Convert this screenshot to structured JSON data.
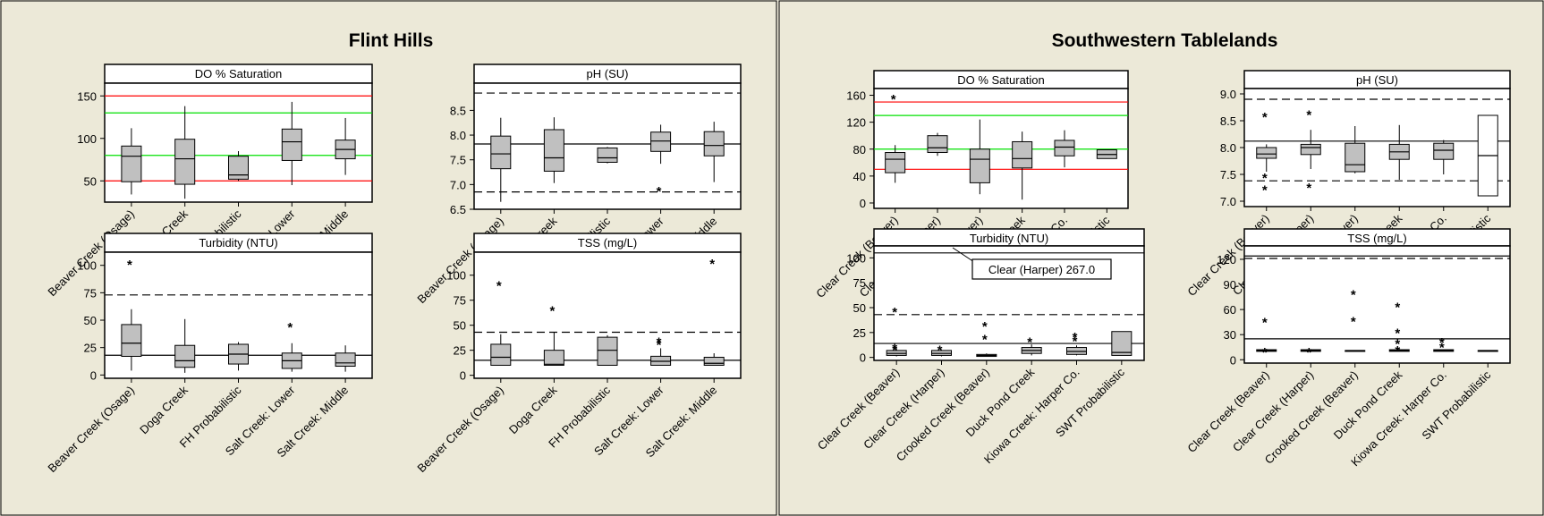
{
  "colors": {
    "background": "#ECE9D8",
    "box_fill": "#C0C0C0",
    "red_line": "#FF0000",
    "green_line": "#00E000",
    "frame": "#000000"
  },
  "groups": [
    {
      "title": "Flint Hills",
      "categories": [
        "Beaver Creek (Osage)",
        "Doga Creek",
        "FH Probabilistic",
        "Salt Creek:  Lower",
        "Salt Creek: Middle"
      ]
    },
    {
      "title": "Southwestern Tablelands",
      "categories": [
        "Clear Creek (Beaver)",
        "Clear Creek (Harper)",
        "Crooked Creek (Beaver)",
        "Duck Pond Creek",
        "Kiowa Creek:  Harper Co.",
        "SWT Probabilistic"
      ]
    }
  ],
  "chart_data": [
    {
      "type": "box",
      "group": "Flint Hills",
      "title": "DO % Saturation",
      "categories": [
        "Beaver Creek (Osage)",
        "Doga Creek",
        "FH Probabilistic",
        "Salt Creek:  Lower",
        "Salt Creek: Middle"
      ],
      "ylim": [
        25,
        165
      ],
      "yticks": [
        50,
        100,
        150
      ],
      "boxes": [
        {
          "wl": 34,
          "q1": 49,
          "median": 79,
          "q3": 91,
          "wh": 112,
          "outliers": []
        },
        {
          "wl": 29,
          "q1": 46,
          "median": 76,
          "q3": 99,
          "wh": 138,
          "outliers": []
        },
        {
          "wl": 50,
          "q1": 52,
          "median": 57,
          "q3": 79,
          "wh": 85,
          "outliers": []
        },
        {
          "wl": 45,
          "q1": 74,
          "median": 96,
          "q3": 111,
          "wh": 143,
          "outliers": []
        },
        {
          "wl": 57,
          "q1": 76,
          "median": 87,
          "q3": 98,
          "wh": 124,
          "outliers": []
        }
      ],
      "reference_lines": [
        {
          "value": 150,
          "style": "red"
        },
        {
          "value": 130,
          "style": "green"
        },
        {
          "value": 80,
          "style": "green"
        },
        {
          "value": 50,
          "style": "red"
        }
      ]
    },
    {
      "type": "box",
      "group": "Flint Hills",
      "title": "pH (SU)",
      "categories": [
        "Beaver Creek (Osage)",
        "Doga Creek",
        "FH Probabilistic",
        "Salt Creek:  Lower",
        "Salt Creek: Middle"
      ],
      "ylim": [
        6.5,
        9.05
      ],
      "yticks": [
        6.5,
        7.0,
        7.5,
        8.0,
        8.5
      ],
      "boxes": [
        {
          "wl": 6.65,
          "q1": 7.32,
          "median": 7.62,
          "q3": 7.98,
          "wh": 8.35,
          "outliers": []
        },
        {
          "wl": 7.03,
          "q1": 7.27,
          "median": 7.54,
          "q3": 8.11,
          "wh": 8.36,
          "outliers": []
        },
        {
          "wl": 7.43,
          "q1": 7.45,
          "median": 7.54,
          "q3": 7.74,
          "wh": 7.76,
          "outliers": []
        },
        {
          "wl": 7.42,
          "q1": 7.67,
          "median": 7.88,
          "q3": 8.06,
          "wh": 8.21,
          "outliers": [
            6.92
          ]
        },
        {
          "wl": 7.05,
          "q1": 7.58,
          "median": 7.79,
          "q3": 8.07,
          "wh": 8.27,
          "outliers": []
        }
      ],
      "reference_lines": [
        {
          "value": 8.85,
          "style": "dashed"
        },
        {
          "value": 7.82,
          "style": "solid"
        },
        {
          "value": 6.85,
          "style": "dashed"
        }
      ]
    },
    {
      "type": "box",
      "group": "Flint Hills",
      "title": "Turbidity (NTU)",
      "categories": [
        "Beaver Creek (Osage)",
        "Doga Creek",
        "FH Probabilistic",
        "Salt Creek:  Lower",
        "Salt Creek: Middle"
      ],
      "ylim": [
        -3,
        112
      ],
      "yticks": [
        0,
        25,
        50,
        75,
        100
      ],
      "boxes": [
        {
          "wl": 4,
          "q1": 17,
          "median": 29,
          "q3": 46,
          "wh": 60,
          "outliers": [
            103
          ]
        },
        {
          "wl": 2,
          "q1": 7,
          "median": 13,
          "q3": 27,
          "wh": 51,
          "outliers": []
        },
        {
          "wl": 4,
          "q1": 10,
          "median": 19,
          "q3": 28,
          "wh": 30,
          "outliers": []
        },
        {
          "wl": 3,
          "q1": 6,
          "median": 13,
          "q3": 20,
          "wh": 29,
          "outliers": [
            46
          ]
        },
        {
          "wl": 3,
          "q1": 8,
          "median": 11,
          "q3": 20,
          "wh": 27,
          "outliers": []
        }
      ],
      "reference_lines": [
        {
          "value": 73,
          "style": "dashed"
        },
        {
          "value": 18,
          "style": "solid"
        }
      ]
    },
    {
      "type": "box",
      "group": "Flint Hills",
      "title": "TSS (mg/L)",
      "categories": [
        "Beaver Creek (Osage)",
        "Doga Creek",
        "FH Probabilistic",
        "Salt Creek:  Lower",
        "Salt Creek: Middle"
      ],
      "ylim": [
        -3,
        123
      ],
      "yticks": [
        0,
        25,
        50,
        75,
        100
      ],
      "boxes": [
        {
          "wl": 10,
          "q1": 10,
          "median": 18,
          "q3": 31,
          "wh": 41,
          "outliers": [
            92
          ]
        },
        {
          "wl": 10,
          "q1": 10,
          "median": 11,
          "q3": 25,
          "wh": 43,
          "outliers": [
            67
          ]
        },
        {
          "wl": 10,
          "q1": 10,
          "median": 25,
          "q3": 38,
          "wh": 40,
          "outliers": []
        },
        {
          "wl": 10,
          "q1": 10,
          "median": 14,
          "q3": 19,
          "wh": 27,
          "outliers": [
            33,
            36
          ]
        },
        {
          "wl": 10,
          "q1": 10,
          "median": 12,
          "q3": 18,
          "wh": 22,
          "outliers": [
            114
          ]
        }
      ],
      "reference_lines": [
        {
          "value": 43,
          "style": "dashed"
        },
        {
          "value": 15,
          "style": "solid"
        }
      ]
    },
    {
      "type": "box",
      "group": "Southwestern Tablelands",
      "title": "DO % Saturation",
      "categories": [
        "Clear Creek (Beaver)",
        "Clear Creek (Harper)",
        "Crooked Creek (Beaver)",
        "Duck Pond Creek",
        "Kiowa Creek:  Harper Co.",
        "SWT Probabilistic"
      ],
      "ylim": [
        -8,
        170
      ],
      "yticks": [
        0,
        40,
        80,
        120,
        160
      ],
      "boxes": [
        {
          "wl": 30,
          "q1": 45,
          "median": 65,
          "q3": 75,
          "wh": 86,
          "outliers": [
            158
          ]
        },
        {
          "wl": 70,
          "q1": 75,
          "median": 82,
          "q3": 100,
          "wh": 104,
          "outliers": []
        },
        {
          "wl": 13,
          "q1": 30,
          "median": 65,
          "q3": 80,
          "wh": 124,
          "outliers": []
        },
        {
          "wl": 5,
          "q1": 52,
          "median": 66,
          "q3": 91,
          "wh": 106,
          "outliers": []
        },
        {
          "wl": 53,
          "q1": 70,
          "median": 83,
          "q3": 93,
          "wh": 108,
          "outliers": []
        },
        {
          "wl": 66,
          "q1": 66,
          "median": 72,
          "q3": 79,
          "wh": 79,
          "outliers": []
        }
      ],
      "reference_lines": [
        {
          "value": 150,
          "style": "red"
        },
        {
          "value": 130,
          "style": "green"
        },
        {
          "value": 80,
          "style": "green"
        },
        {
          "value": 50,
          "style": "red"
        }
      ]
    },
    {
      "type": "box",
      "group": "Southwestern Tablelands",
      "title": "pH (SU)",
      "categories": [
        "Clear Creek (Beaver)",
        "Clear Creek (Harper)",
        "Crooked Creek (Beaver)",
        "Duck Pond Creek",
        "Kiowa Creek:  Harper Co.",
        "SWT Probabilistic"
      ],
      "ylim": [
        6.9,
        9.1
      ],
      "yticks": [
        7.0,
        7.5,
        8.0,
        8.5,
        9.0
      ],
      "boxes": [
        {
          "wl": 7.55,
          "q1": 7.8,
          "median": 7.88,
          "q3": 8.0,
          "wh": 8.06,
          "outliers": [
            8.62,
            7.48,
            7.26
          ]
        },
        {
          "wl": 7.6,
          "q1": 7.87,
          "median": 8.0,
          "q3": 8.06,
          "wh": 8.33,
          "outliers": [
            8.66,
            7.3
          ]
        },
        {
          "wl": 7.52,
          "q1": 7.55,
          "median": 7.68,
          "q3": 8.08,
          "wh": 8.4,
          "outliers": []
        },
        {
          "wl": 7.4,
          "q1": 7.78,
          "median": 7.92,
          "q3": 8.06,
          "wh": 8.42,
          "outliers": []
        },
        {
          "wl": 7.5,
          "q1": 7.78,
          "median": 7.95,
          "q3": 8.08,
          "wh": 8.14,
          "outliers": []
        },
        {
          "wl": 7.1,
          "q1": 7.1,
          "median": 7.85,
          "q3": 8.6,
          "wh": 8.6,
          "outliers": []
        }
      ],
      "reference_lines": [
        {
          "value": 8.9,
          "style": "dashed"
        },
        {
          "value": 8.12,
          "style": "solid"
        },
        {
          "value": 7.38,
          "style": "dashed"
        }
      ]
    },
    {
      "type": "box",
      "group": "Southwestern Tablelands",
      "title": "Turbidity (NTU)",
      "categories": [
        "Clear Creek (Beaver)",
        "Clear Creek (Harper)",
        "Crooked Creek (Beaver)",
        "Duck Pond Creek",
        "Kiowa Creek:  Harper Co.",
        "SWT Probabilistic"
      ],
      "ylim": [
        -3,
        112
      ],
      "yticks": [
        0,
        25,
        50,
        75,
        100
      ],
      "annotation": "Clear (Harper) 267.0",
      "boxes": [
        {
          "wl": 1,
          "q1": 2,
          "median": 4,
          "q3": 7,
          "wh": 9,
          "outliers": [
            48,
            12,
            10
          ]
        },
        {
          "wl": 1,
          "q1": 2,
          "median": 4,
          "q3": 7,
          "wh": 8,
          "outliers": [
            10
          ]
        },
        {
          "wl": 1,
          "q1": 1,
          "median": 2,
          "q3": 3,
          "wh": 4,
          "outliers": [
            34,
            21
          ]
        },
        {
          "wl": 2,
          "q1": 4,
          "median": 7,
          "q3": 10,
          "wh": 13,
          "outliers": [
            18
          ]
        },
        {
          "wl": 2,
          "q1": 3,
          "median": 6,
          "q3": 10,
          "wh": 12,
          "outliers": [
            23,
            19
          ]
        },
        {
          "wl": 2,
          "q1": 2,
          "median": 5,
          "q3": 26,
          "wh": 26,
          "outliers": []
        }
      ],
      "reference_lines": [
        {
          "value": 105,
          "style": "solid"
        },
        {
          "value": 43,
          "style": "dashed"
        },
        {
          "value": 14,
          "style": "solid"
        }
      ]
    },
    {
      "type": "box",
      "group": "Southwestern Tablelands",
      "title": "TSS (mg/L)",
      "categories": [
        "Clear Creek (Beaver)",
        "Clear Creek (Harper)",
        "Crooked Creek (Beaver)",
        "Duck Pond Creek",
        "Kiowa Creek:  Harper Co.",
        "SWT Probabilistic"
      ],
      "ylim": [
        -4,
        136
      ],
      "yticks": [
        0,
        30,
        60,
        90,
        120
      ],
      "boxes": [
        {
          "wl": 10,
          "q1": 10,
          "median": 11,
          "q3": 12,
          "wh": 13,
          "outliers": [
            48,
            12
          ]
        },
        {
          "wl": 10,
          "q1": 10,
          "median": 11,
          "q3": 12,
          "wh": 12,
          "outliers": [
            12
          ]
        },
        {
          "wl": 10,
          "q1": 10,
          "median": 11,
          "q3": 11,
          "wh": 11,
          "outliers": [
            81,
            49
          ]
        },
        {
          "wl": 10,
          "q1": 10,
          "median": 11,
          "q3": 12,
          "wh": 13,
          "outliers": [
            66,
            35,
            22,
            14
          ]
        },
        {
          "wl": 10,
          "q1": 10,
          "median": 11,
          "q3": 12,
          "wh": 12,
          "outliers": [
            24,
            18
          ]
        },
        {
          "wl": 10,
          "q1": 10,
          "median": 11,
          "q3": 11,
          "wh": 11,
          "outliers": []
        }
      ],
      "reference_lines": [
        {
          "value": 124,
          "style": "solid"
        },
        {
          "value": 121,
          "style": "dashed"
        },
        {
          "value": 25,
          "style": "solid"
        }
      ]
    }
  ]
}
